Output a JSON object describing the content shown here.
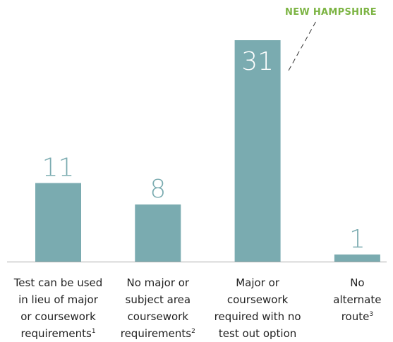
{
  "chart_data": {
    "type": "bar",
    "annotation": "NEW HAMPSHIRE",
    "categories": [
      [
        "Test can be used",
        "in lieu of major",
        "or coursework",
        "requirements"
      ],
      [
        "No major or",
        "subject area",
        "coursework",
        "requirements"
      ],
      [
        "Major or",
        "coursework",
        "required with no",
        "test out option"
      ],
      [
        "No",
        "alternate",
        "route"
      ]
    ],
    "footnotes": [
      "1",
      "2",
      null,
      "3"
    ],
    "values": [
      11,
      8,
      31,
      1
    ],
    "color": "#7aabb0"
  }
}
